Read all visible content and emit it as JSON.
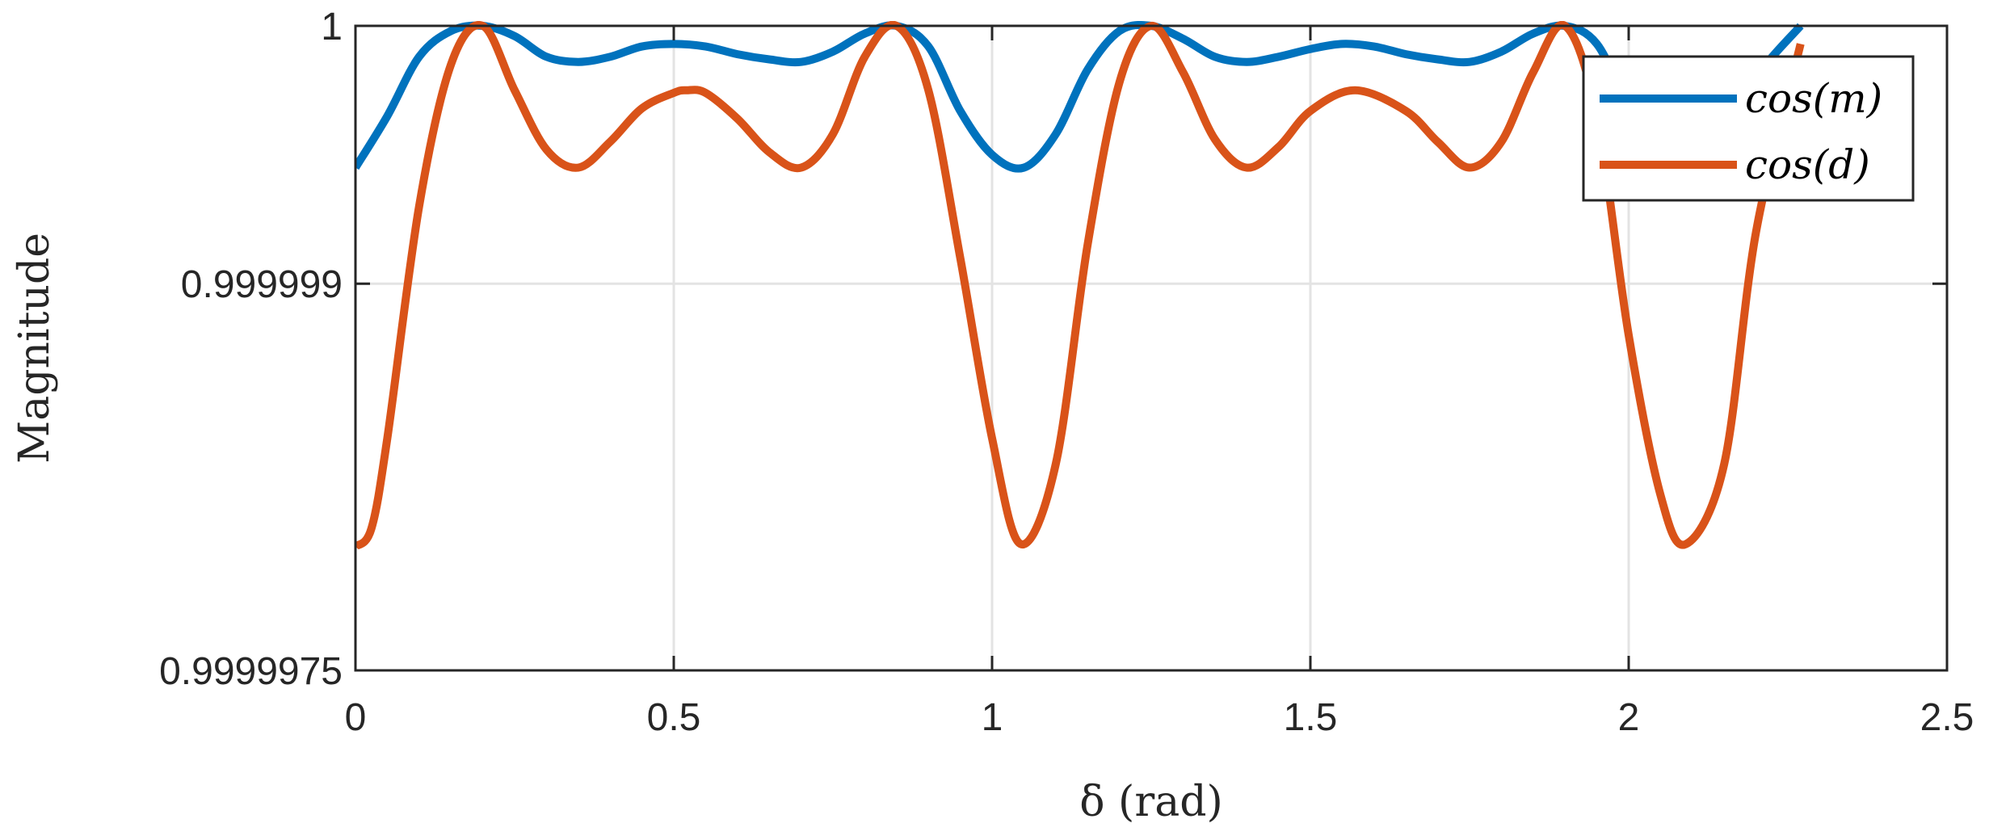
{
  "chart_data": {
    "type": "line",
    "title": "",
    "xlabel": "δ (rad)",
    "ylabel": "Magnitude",
    "xlim": [
      0,
      2.5
    ],
    "ylim": [
      0.9999975,
      1
    ],
    "xticks": [
      0,
      0.5,
      1,
      1.5,
      2,
      2.5
    ],
    "xtick_labels": [
      "0",
      "0.5",
      "1",
      "1.5",
      "2",
      "2.5"
    ],
    "yticks": [
      0.9999975,
      0.999999,
      1
    ],
    "ytick_labels": [
      "0.9999975",
      "0.999999",
      "1"
    ],
    "grid": true,
    "legend_position": "top-right",
    "series": [
      {
        "name": "cos(m)",
        "color": "#0072BD",
        "x": [
          0,
          0.05,
          0.1,
          0.15,
          0.2,
          0.25,
          0.3,
          0.35,
          0.4,
          0.45,
          0.5,
          0.55,
          0.6,
          0.65,
          0.7,
          0.75,
          0.8,
          0.85,
          0.9,
          0.95,
          1.0,
          1.05,
          1.1,
          1.15,
          1.2,
          1.25,
          1.3,
          1.35,
          1.4,
          1.45,
          1.5,
          1.55,
          1.6,
          1.65,
          1.7,
          1.75,
          1.8,
          1.85,
          1.9,
          1.95,
          2.0,
          2.05,
          2.1,
          2.15,
          2.2,
          2.27
        ],
        "y": [
          0.99999945,
          0.99999965,
          0.99999988,
          0.99999998,
          1.0,
          0.99999996,
          0.99999988,
          0.99999986,
          0.99999988,
          0.99999992,
          0.99999993,
          0.99999992,
          0.99999989,
          0.99999987,
          0.99999986,
          0.9999999,
          0.99999997,
          1.0,
          0.99999992,
          0.99999967,
          0.9999995,
          0.99999945,
          0.99999958,
          0.99999983,
          0.99999998,
          1.0,
          0.99999995,
          0.99999988,
          0.99999986,
          0.99999988,
          0.99999991,
          0.99999993,
          0.99999992,
          0.99999989,
          0.99999987,
          0.99999986,
          0.9999999,
          0.99999997,
          1.0,
          0.99999993,
          0.99999969,
          0.99999952,
          0.99999946,
          0.99999956,
          0.9999998,
          1.0
        ]
      },
      {
        "name": "cos(d)",
        "color": "#D95319",
        "x": [
          0,
          0.025,
          0.05,
          0.1,
          0.15,
          0.2,
          0.25,
          0.3,
          0.35,
          0.4,
          0.45,
          0.5,
          0.52,
          0.55,
          0.6,
          0.65,
          0.7,
          0.75,
          0.8,
          0.85,
          0.9,
          0.95,
          1.0,
          1.045,
          1.1,
          1.15,
          1.2,
          1.25,
          1.3,
          1.35,
          1.4,
          1.45,
          1.5,
          1.57,
          1.65,
          1.7,
          1.75,
          1.8,
          1.85,
          1.9,
          1.95,
          2.0,
          2.05,
          2.09,
          2.15,
          2.2,
          2.27
        ],
        "y": [
          0.99999798,
          0.99999805,
          0.9999984,
          0.9999993,
          0.99999985,
          1.0,
          0.99999975,
          0.99999952,
          0.99999945,
          0.99999955,
          0.99999968,
          0.99999974,
          0.99999975,
          0.99999974,
          0.99999964,
          0.99999951,
          0.99999945,
          0.99999958,
          0.99999988,
          1.0,
          0.99999975,
          0.9999991,
          0.9999984,
          0.99999799,
          0.9999983,
          0.99999915,
          0.99999978,
          1.0,
          0.99999982,
          0.99999956,
          0.99999945,
          0.99999953,
          0.99999967,
          0.99999975,
          0.99999967,
          0.99999955,
          0.99999945,
          0.99999955,
          0.99999982,
          1.0,
          0.99999965,
          0.9999988,
          0.99999818,
          0.99999799,
          0.9999983,
          0.9999992,
          0.99999993
        ]
      }
    ]
  }
}
